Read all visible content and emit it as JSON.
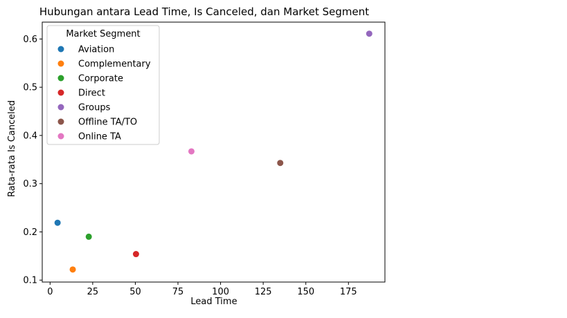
{
  "chart_data": {
    "type": "scatter",
    "title": "Hubungan antara Lead Time, Is Canceled, dan Market Segment",
    "xlabel": "Lead Time",
    "ylabel": "Rata-rata Is Canceled",
    "xlim": [
      -4.6,
      196.4
    ],
    "ylim": [
      0.096,
      0.635
    ],
    "xticks": [
      0,
      25,
      50,
      75,
      100,
      125,
      150,
      175
    ],
    "xtick_labels": [
      "0",
      "25",
      "50",
      "75",
      "100",
      "125",
      "150",
      "175"
    ],
    "yticks": [
      0.1,
      0.2,
      0.3,
      0.4,
      0.5,
      0.6
    ],
    "ytick_labels": [
      "0.1",
      "0.2",
      "0.3",
      "0.4",
      "0.5",
      "0.6"
    ],
    "grid": false,
    "legend": {
      "title": "Market Segment",
      "placement": "upper-left"
    },
    "series": [
      {
        "name": "Aviation",
        "color": "#1f77b4",
        "x": [
          4.4
        ],
        "y": [
          0.219
        ]
      },
      {
        "name": "Complementary",
        "color": "#ff7f0e",
        "x": [
          13.3
        ],
        "y": [
          0.122
        ]
      },
      {
        "name": "Corporate",
        "color": "#2ca02c",
        "x": [
          22.7
        ],
        "y": [
          0.19
        ]
      },
      {
        "name": "Direct",
        "color": "#d62728",
        "x": [
          50.4
        ],
        "y": [
          0.154
        ]
      },
      {
        "name": "Groups",
        "color": "#9467bd",
        "x": [
          187.2
        ],
        "y": [
          0.611
        ]
      },
      {
        "name": "Offline TA/TO",
        "color": "#8c564b",
        "x": [
          135.0
        ],
        "y": [
          0.343
        ]
      },
      {
        "name": "Online TA",
        "color": "#e377c2",
        "x": [
          82.9
        ],
        "y": [
          0.367
        ]
      }
    ]
  }
}
